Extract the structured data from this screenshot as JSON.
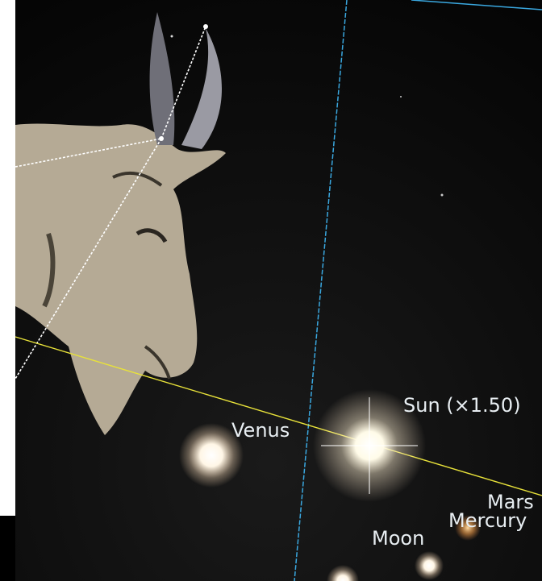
{
  "sky_view": {
    "labels": [
      {
        "text": "Venus"
      },
      {
        "text": "Sun (×1.50)"
      },
      {
        "text": "Mars"
      },
      {
        "text": "Mercury"
      },
      {
        "text": "Moon"
      }
    ]
  }
}
